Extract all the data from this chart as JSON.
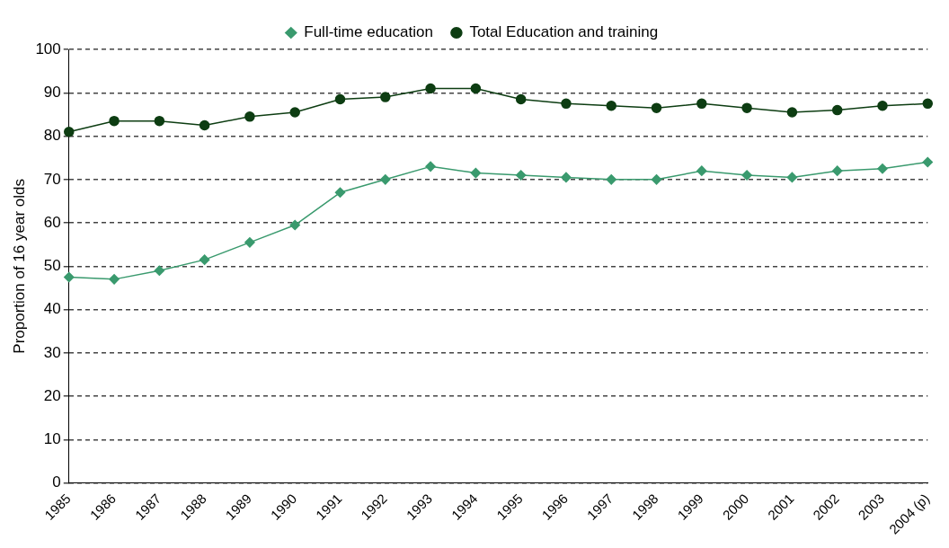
{
  "chart_data": {
    "type": "line",
    "ylabel": "Proportion of 16 year olds",
    "categories": [
      "1985",
      "1986",
      "1987",
      "1988",
      "1989",
      "1990",
      "1991",
      "1992",
      "1993",
      "1994",
      "1995",
      "1996",
      "1997",
      "1998",
      "1999",
      "2000",
      "2001",
      "2002",
      "2003",
      "2004 (p)"
    ],
    "series": [
      {
        "name": "Full-time education",
        "color": "#3a9a6e",
        "marker": "diamond",
        "values": [
          47.5,
          47,
          49,
          51.5,
          55.5,
          59.5,
          67,
          70,
          73,
          71.5,
          71,
          70.5,
          70,
          70,
          72,
          71,
          70.5,
          72,
          72.5,
          74
        ]
      },
      {
        "name": "Total Education and training",
        "color": "#0d3d12",
        "marker": "circle",
        "values": [
          81,
          83.5,
          83.5,
          82.5,
          84.5,
          85.5,
          88.5,
          89,
          91,
          91,
          88.5,
          87.5,
          87,
          86.5,
          87.5,
          86.5,
          85.5,
          86,
          87,
          87.5
        ]
      }
    ],
    "ylim": [
      0,
      100
    ],
    "yticks": [
      0,
      10,
      20,
      30,
      40,
      50,
      60,
      70,
      80,
      90,
      100
    ],
    "grid": "y",
    "legend": "top",
    "line_style": "solid"
  }
}
